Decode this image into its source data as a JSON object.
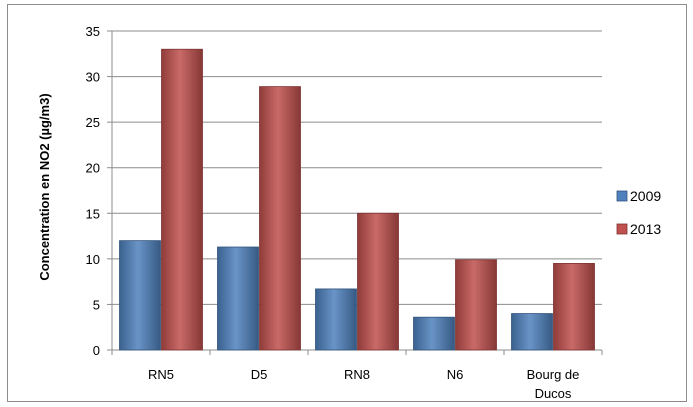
{
  "chart_data": {
    "type": "bar",
    "categories": [
      "RN5",
      "D5",
      "RN8",
      "N6",
      "Bourg de Ducos"
    ],
    "category_lines": [
      [
        "RN5"
      ],
      [
        "D5"
      ],
      [
        "RN8"
      ],
      [
        "N6"
      ],
      [
        "Bourg de",
        "Ducos"
      ]
    ],
    "series": [
      {
        "name": "2009",
        "values": [
          12,
          11.3,
          6.7,
          3.6,
          4.0
        ],
        "color": "#4f81bd"
      },
      {
        "name": "2013",
        "values": [
          33,
          28.9,
          15,
          9.9,
          9.5
        ],
        "color": "#c0504d"
      }
    ],
    "title": "",
    "xlabel": "",
    "ylabel": "Concentration en NO2 (µg/m3)",
    "ylim": [
      0,
      35
    ],
    "yticks": [
      0,
      5,
      10,
      15,
      20,
      25,
      30,
      35
    ],
    "grid": true,
    "legend": "right"
  }
}
